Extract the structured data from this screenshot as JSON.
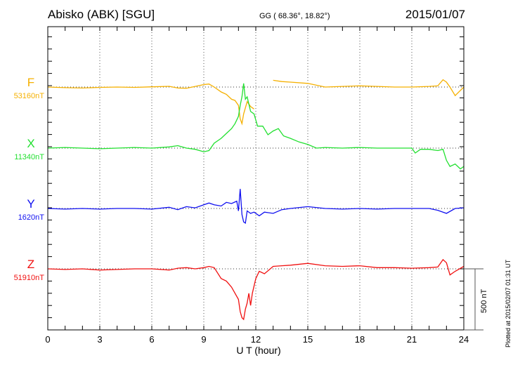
{
  "chart_data": {
    "type": "line",
    "title": "Abisko (ABK)  [SGU]",
    "coords": "GG ( 68.36°,  18.82°)",
    "date": "2015/01/07",
    "xlabel": "U T (hour)",
    "xlim": [
      0,
      24
    ],
    "xticks": [
      "0",
      "3",
      "6",
      "9",
      "12",
      "15",
      "18",
      "21",
      "24"
    ],
    "scale_label": "500 nT",
    "scale_nT": 500,
    "footer": "Plotted at 2015/02/07 01:31  UT",
    "series": [
      {
        "name": "F",
        "baseline_label": "53160nT",
        "color": "#f5b000",
        "x": [
          0,
          1,
          2,
          3,
          4,
          5,
          6,
          7,
          7.5,
          8,
          8.5,
          9,
          9.3,
          9.6,
          10,
          10.3,
          10.6,
          10.8,
          11,
          11.1,
          11.2,
          11.3,
          11.5,
          11.7,
          11.9,
          null,
          13,
          13.5,
          14,
          15,
          16,
          17,
          18,
          19,
          20,
          21,
          22,
          22.5,
          22.8,
          23,
          23.2,
          23.5,
          24
        ],
        "y": [
          0,
          -5,
          -8,
          -3,
          0,
          -3,
          2,
          6,
          -8,
          -10,
          5,
          20,
          25,
          0,
          -40,
          -60,
          -100,
          -110,
          -150,
          -260,
          -300,
          -220,
          -120,
          -160,
          -180,
          null,
          55,
          45,
          40,
          30,
          0,
          5,
          10,
          5,
          0,
          0,
          5,
          10,
          60,
          40,
          0,
          -70,
          0
        ]
      },
      {
        "name": "X",
        "baseline_label": "11340nT",
        "color": "#22e030",
        "x": [
          0,
          1,
          2,
          3,
          4,
          5,
          6,
          7,
          7.5,
          8,
          8.5,
          9,
          9.3,
          9.6,
          10,
          10.3,
          10.6,
          10.8,
          11,
          11.1,
          11.2,
          11.3,
          11.4,
          11.5,
          11.7,
          11.9,
          12.1,
          12.4,
          12.7,
          13,
          13.3,
          13.6,
          14,
          14.5,
          15,
          15.5,
          16,
          17,
          18,
          19,
          20,
          21,
          21.2,
          21.5,
          22,
          22.5,
          22.8,
          23,
          23.2,
          23.5,
          23.8,
          24
        ],
        "y": [
          0,
          5,
          0,
          -5,
          0,
          5,
          0,
          10,
          20,
          0,
          -10,
          -30,
          -20,
          40,
          80,
          120,
          160,
          200,
          260,
          350,
          420,
          530,
          400,
          420,
          300,
          280,
          180,
          180,
          110,
          140,
          160,
          100,
          80,
          50,
          30,
          0,
          5,
          0,
          5,
          0,
          0,
          0,
          -40,
          -10,
          -10,
          -20,
          -10,
          -100,
          -150,
          -130,
          -170,
          -150
        ]
      },
      {
        "name": "Y",
        "baseline_label": "1620nT",
        "color": "#1010f0",
        "x": [
          0,
          1,
          2,
          3,
          4,
          5,
          6,
          7,
          7.5,
          8,
          8.5,
          9,
          9.3,
          9.6,
          10,
          10.3,
          10.6,
          10.9,
          11,
          11.1,
          11.2,
          11.3,
          11.4,
          11.5,
          11.7,
          11.9,
          12.2,
          12.5,
          13,
          13.5,
          14,
          15,
          16,
          17,
          18,
          19,
          20,
          21,
          22,
          22.5,
          23,
          23.5,
          24
        ],
        "y": [
          0,
          -5,
          0,
          -5,
          0,
          0,
          -5,
          10,
          -10,
          15,
          5,
          30,
          45,
          30,
          20,
          50,
          40,
          60,
          -20,
          160,
          -50,
          -110,
          -120,
          -20,
          -40,
          -30,
          -60,
          -30,
          -40,
          -10,
          0,
          15,
          0,
          -5,
          0,
          -5,
          0,
          0,
          0,
          -15,
          -40,
          0,
          5
        ]
      },
      {
        "name": "Z",
        "baseline_label": "51910nT",
        "color": "#f01010",
        "x": [
          0,
          1,
          2,
          3,
          4,
          5,
          6,
          7,
          7.5,
          8,
          8.5,
          9,
          9.3,
          9.6,
          10,
          10.3,
          10.6,
          10.8,
          11,
          11.1,
          11.2,
          11.3,
          11.4,
          11.5,
          11.6,
          11.7,
          11.8,
          12,
          12.2,
          12.5,
          13,
          13.5,
          14,
          15,
          16,
          17,
          18,
          19,
          20,
          21,
          22,
          22.5,
          22.8,
          23,
          23.2,
          23.5,
          24
        ],
        "y": [
          0,
          -5,
          0,
          -10,
          -5,
          0,
          0,
          -10,
          5,
          10,
          0,
          10,
          20,
          10,
          -80,
          -100,
          -150,
          -200,
          -250,
          -350,
          -400,
          -414,
          -330,
          -280,
          -200,
          -300,
          -200,
          -80,
          -20,
          -40,
          20,
          25,
          30,
          45,
          25,
          20,
          25,
          10,
          10,
          5,
          10,
          15,
          75,
          50,
          -50,
          -20,
          20
        ]
      }
    ]
  }
}
